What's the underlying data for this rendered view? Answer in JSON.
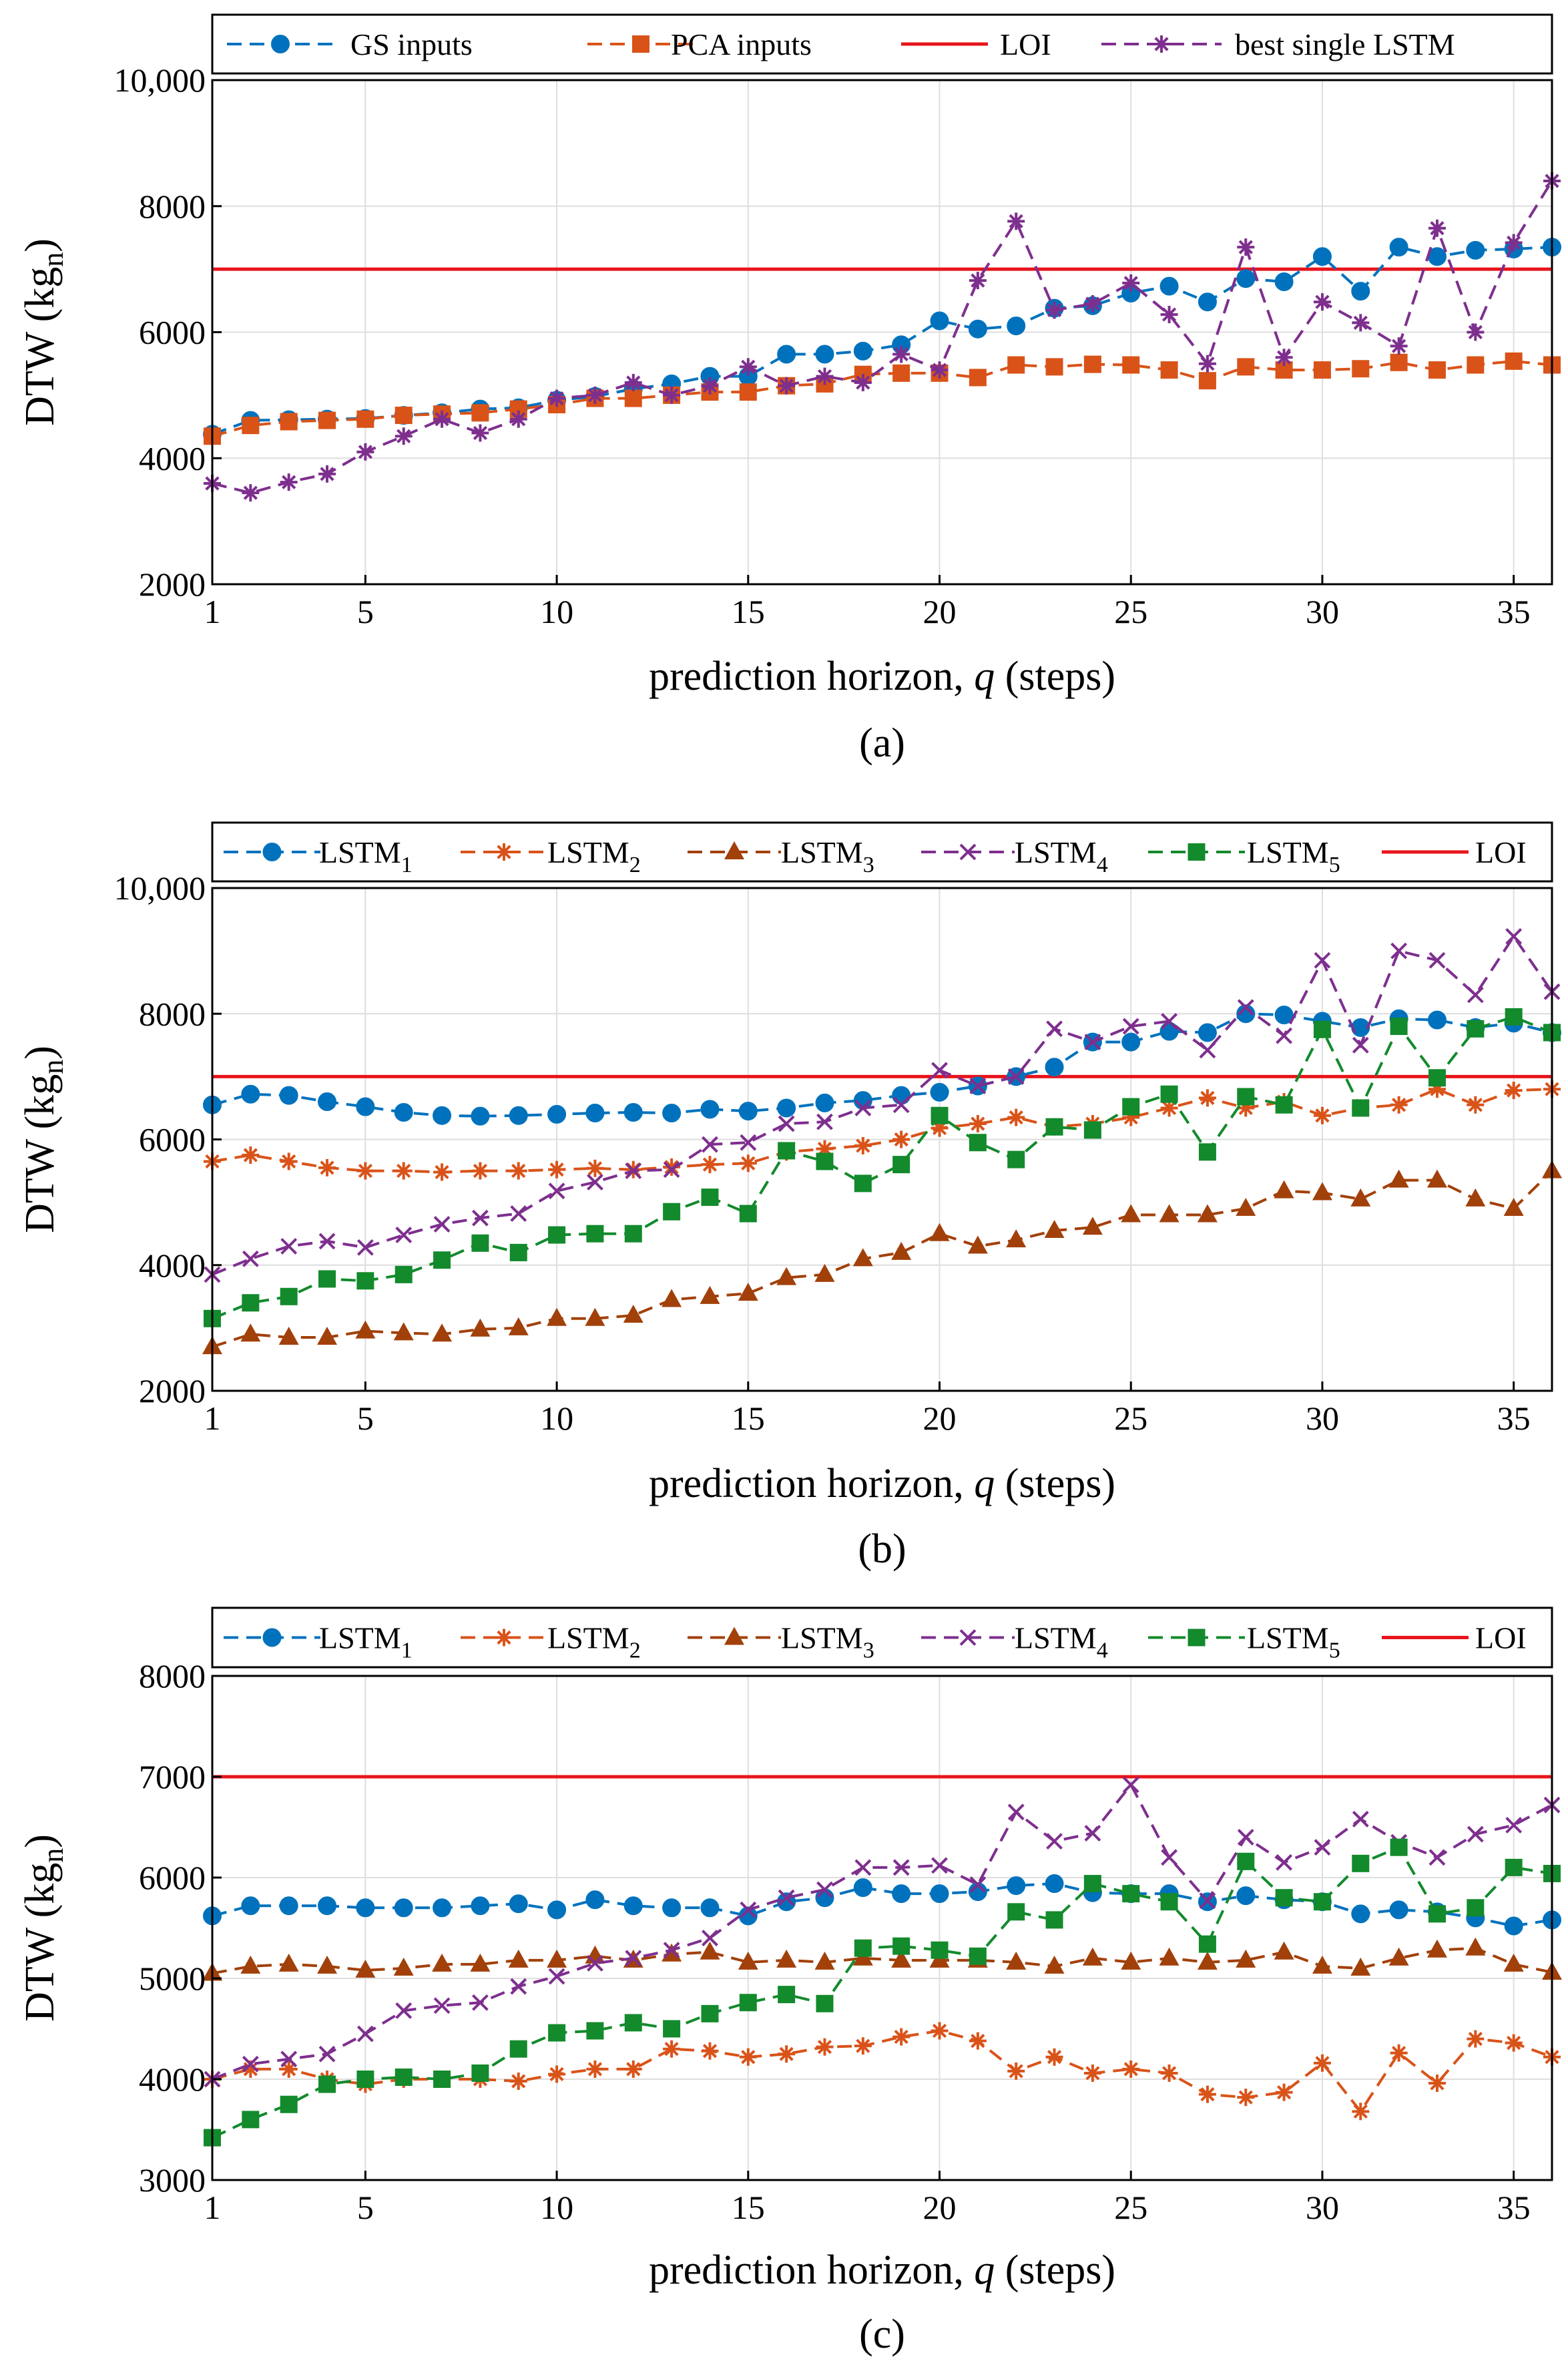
{
  "colors": {
    "blue": "#0072BD",
    "orange": "#D95319",
    "brown": "#A2400A",
    "purple": "#7E2F8E",
    "green": "#138A2C",
    "red": "#E8141B"
  },
  "chart_data": [
    {
      "type": "line",
      "panel": "a",
      "caption": "(a)",
      "xlabel_pre": "prediction horizon, ",
      "xlabel_var": "q",
      "xlabel_post": " (steps)",
      "ylabel_main": "DTW (kg",
      "ylabel_sub": "n",
      "ylabel_end": ")",
      "ylim": [
        2000,
        10000
      ],
      "yticks": [
        2000,
        4000,
        6000,
        8000,
        10000
      ],
      "ytick_labels": [
        "2000",
        "4000",
        "6000",
        "8000",
        "10,000"
      ],
      "xlim": [
        1,
        36
      ],
      "xticks": [
        1,
        5,
        10,
        15,
        20,
        25,
        30,
        35
      ],
      "loi": 7000,
      "series": [
        {
          "name": "GS inputs",
          "sub": "",
          "color": "#0072BD",
          "marker": "circle",
          "values": [
            4380,
            4600,
            4610,
            4620,
            4630,
            4680,
            4720,
            4780,
            4800,
            4920,
            4980,
            5100,
            5180,
            5300,
            5300,
            5650,
            5650,
            5700,
            5800,
            6180,
            6050,
            6100,
            6380,
            6420,
            6620,
            6730,
            6480,
            6850,
            6800,
            7200,
            6650,
            7350,
            7200,
            7300,
            7320,
            7350
          ]
        },
        {
          "name": "PCA inputs",
          "sub": "",
          "color": "#D95319",
          "marker": "square",
          "values": [
            4350,
            4520,
            4580,
            4600,
            4620,
            4680,
            4700,
            4720,
            4780,
            4850,
            4950,
            4950,
            5000,
            5050,
            5050,
            5150,
            5180,
            5330,
            5350,
            5350,
            5280,
            5480,
            5450,
            5490,
            5480,
            5400,
            5230,
            5450,
            5400,
            5400,
            5420,
            5520,
            5400,
            5480,
            5540,
            5480
          ]
        },
        {
          "name": "LOI",
          "sub": "",
          "color": "#E8141B",
          "marker": "line",
          "values": []
        },
        {
          "name": "best single LSTM",
          "sub": "",
          "color": "#7E2F8E",
          "marker": "asterisk",
          "values": [
            3600,
            3450,
            3620,
            3750,
            4100,
            4350,
            4620,
            4400,
            4620,
            4950,
            5000,
            5200,
            5000,
            5150,
            5450,
            5150,
            5300,
            5200,
            5650,
            5400,
            6820,
            7760,
            6350,
            6450,
            6780,
            6280,
            5500,
            7350,
            5600,
            6480,
            6150,
            5780,
            7650,
            6000,
            7420,
            8400
          ]
        }
      ]
    },
    {
      "type": "line",
      "panel": "b",
      "caption": "(b)",
      "xlabel_pre": "prediction horizon, ",
      "xlabel_var": "q",
      "xlabel_post": " (steps)",
      "ylabel_main": "DTW (kg",
      "ylabel_sub": "n",
      "ylabel_end": ")",
      "ylim": [
        2000,
        10000
      ],
      "yticks": [
        2000,
        4000,
        6000,
        8000,
        10000
      ],
      "ytick_labels": [
        "2000",
        "4000",
        "6000",
        "8000",
        "10,000"
      ],
      "xlim": [
        1,
        36
      ],
      "xticks": [
        1,
        5,
        10,
        15,
        20,
        25,
        30,
        35
      ],
      "loi": 7000,
      "series": [
        {
          "name": "LSTM",
          "sub": "1",
          "color": "#0072BD",
          "marker": "circle",
          "values": [
            6550,
            6720,
            6700,
            6600,
            6520,
            6430,
            6380,
            6370,
            6380,
            6400,
            6420,
            6430,
            6420,
            6480,
            6450,
            6500,
            6580,
            6620,
            6700,
            6750,
            6850,
            7000,
            7150,
            7550,
            7550,
            7720,
            7700,
            8000,
            7980,
            7880,
            7780,
            7920,
            7900,
            7780,
            7850,
            7700
          ]
        },
        {
          "name": "LSTM",
          "sub": "2",
          "color": "#D95319",
          "marker": "asterisk",
          "values": [
            5650,
            5750,
            5650,
            5550,
            5500,
            5500,
            5480,
            5500,
            5500,
            5520,
            5540,
            5520,
            5560,
            5600,
            5620,
            5800,
            5850,
            5900,
            6000,
            6180,
            6250,
            6350,
            6200,
            6250,
            6350,
            6500,
            6660,
            6500,
            6600,
            6380,
            6500,
            6550,
            6800,
            6550,
            6780,
            6800
          ]
        },
        {
          "name": "LSTM",
          "sub": "3",
          "color": "#A2400A",
          "marker": "triangle",
          "values": [
            2700,
            2900,
            2850,
            2850,
            2950,
            2920,
            2900,
            2980,
            3000,
            3150,
            3150,
            3200,
            3450,
            3500,
            3550,
            3800,
            3850,
            4100,
            4200,
            4500,
            4300,
            4400,
            4550,
            4600,
            4800,
            4800,
            4800,
            4900,
            5180,
            5150,
            5050,
            5350,
            5350,
            5050,
            4900,
            5500
          ]
        },
        {
          "name": "LSTM",
          "sub": "4",
          "color": "#7E2F8E",
          "marker": "x",
          "values": [
            3850,
            4100,
            4300,
            4380,
            4280,
            4480,
            4650,
            4750,
            4820,
            5180,
            5320,
            5500,
            5520,
            5920,
            5950,
            6250,
            6280,
            6500,
            6550,
            7100,
            6850,
            7000,
            7760,
            7550,
            7800,
            7880,
            7420,
            8100,
            7650,
            8850,
            7500,
            9000,
            8850,
            8300,
            9230,
            8350
          ]
        },
        {
          "name": "LSTM",
          "sub": "5",
          "color": "#138A2C",
          "marker": "square",
          "values": [
            3150,
            3400,
            3500,
            3780,
            3750,
            3850,
            4080,
            4350,
            4200,
            4480,
            4500,
            4500,
            4850,
            5080,
            4820,
            5820,
            5650,
            5300,
            5600,
            6380,
            5950,
            5680,
            6200,
            6150,
            6520,
            6720,
            5800,
            6680,
            6550,
            7750,
            6500,
            7800,
            6980,
            7760,
            7950,
            7700
          ]
        },
        {
          "name": "LOI",
          "sub": "",
          "color": "#E8141B",
          "marker": "line",
          "values": []
        }
      ]
    },
    {
      "type": "line",
      "panel": "c",
      "caption": "(c)",
      "xlabel_pre": "prediction horizon, ",
      "xlabel_var": "q",
      "xlabel_post": " (steps)",
      "ylabel_main": "DTW (kg",
      "ylabel_sub": "n",
      "ylabel_end": ")",
      "ylim": [
        3000,
        8000
      ],
      "yticks": [
        3000,
        4000,
        5000,
        6000,
        7000,
        8000
      ],
      "ytick_labels": [
        "3000",
        "4000",
        "5000",
        "6000",
        "7000",
        "8000"
      ],
      "xlim": [
        1,
        36
      ],
      "xticks": [
        1,
        5,
        10,
        15,
        20,
        25,
        30,
        35
      ],
      "loi": 7000,
      "series": [
        {
          "name": "LSTM",
          "sub": "1",
          "color": "#0072BD",
          "marker": "circle",
          "values": [
            5620,
            5720,
            5720,
            5720,
            5700,
            5700,
            5700,
            5720,
            5740,
            5680,
            5780,
            5720,
            5700,
            5700,
            5620,
            5760,
            5800,
            5900,
            5840,
            5840,
            5860,
            5920,
            5940,
            5850,
            5840,
            5840,
            5760,
            5820,
            5780,
            5760,
            5640,
            5680,
            5660,
            5600,
            5520,
            5580
          ]
        },
        {
          "name": "LSTM",
          "sub": "2",
          "color": "#D95319",
          "marker": "asterisk",
          "values": [
            4000,
            4100,
            4100,
            4000,
            3950,
            4000,
            4000,
            4000,
            3980,
            4050,
            4100,
            4100,
            4300,
            4280,
            4220,
            4250,
            4320,
            4330,
            4420,
            4480,
            4380,
            4080,
            4220,
            4060,
            4100,
            4060,
            3850,
            3820,
            3870,
            4160,
            3680,
            4260,
            3960,
            4400,
            4360,
            4220
          ]
        },
        {
          "name": "LSTM",
          "sub": "3",
          "color": "#A2400A",
          "marker": "triangle",
          "values": [
            5050,
            5120,
            5140,
            5120,
            5080,
            5100,
            5140,
            5140,
            5180,
            5180,
            5220,
            5180,
            5240,
            5260,
            5160,
            5180,
            5160,
            5200,
            5180,
            5180,
            5180,
            5160,
            5120,
            5200,
            5160,
            5200,
            5160,
            5180,
            5260,
            5120,
            5100,
            5200,
            5280,
            5300,
            5140,
            5060
          ]
        },
        {
          "name": "LSTM",
          "sub": "4",
          "color": "#7E2F8E",
          "marker": "x",
          "values": [
            4000,
            4150,
            4200,
            4250,
            4450,
            4680,
            4730,
            4760,
            4920,
            5020,
            5150,
            5200,
            5280,
            5400,
            5680,
            5800,
            5880,
            6100,
            6100,
            6120,
            5930,
            6650,
            6360,
            6440,
            6920,
            6200,
            5770,
            6400,
            6150,
            6300,
            6580,
            6350,
            6200,
            6430,
            6520,
            6720
          ]
        },
        {
          "name": "LSTM",
          "sub": "5",
          "color": "#138A2C",
          "marker": "square",
          "values": [
            3420,
            3600,
            3750,
            3950,
            4000,
            4020,
            4000,
            4060,
            4300,
            4460,
            4480,
            4560,
            4500,
            4650,
            4760,
            4840,
            4750,
            5300,
            5320,
            5280,
            5220,
            5660,
            5580,
            5940,
            5840,
            5760,
            5340,
            6160,
            5800,
            5760,
            6140,
            6300,
            5640,
            5700,
            6100,
            6040
          ]
        },
        {
          "name": "LOI",
          "sub": "",
          "color": "#E8141B",
          "marker": "line",
          "values": []
        }
      ]
    }
  ]
}
